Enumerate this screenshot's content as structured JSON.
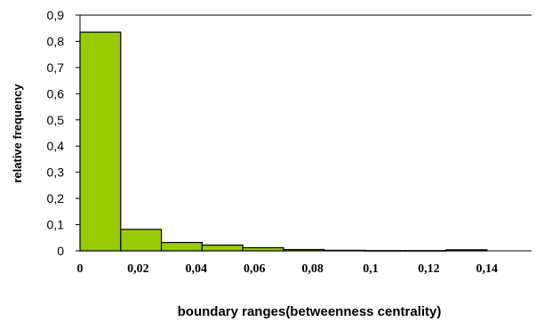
{
  "chart_data": {
    "type": "bar",
    "title": "",
    "xlabel": "boundary ranges(betweenness centrality)",
    "ylabel": "relative frequency",
    "ylim": [
      0,
      0.9
    ],
    "yticks": [
      "0",
      "0,1",
      "0,2",
      "0,3",
      "0,4",
      "0,5",
      "0,6",
      "0,7",
      "0,8",
      "0,9"
    ],
    "xticks": [
      "0",
      "0,02",
      "0,04",
      "0,06",
      "0,08",
      "0,1",
      "0,12",
      "0,14"
    ],
    "bin_width": 0.014,
    "bins": [
      {
        "start": 0.0,
        "value": 0.835
      },
      {
        "start": 0.014,
        "value": 0.082
      },
      {
        "start": 0.028,
        "value": 0.032
      },
      {
        "start": 0.042,
        "value": 0.022
      },
      {
        "start": 0.056,
        "value": 0.012
      },
      {
        "start": 0.07,
        "value": 0.005
      },
      {
        "start": 0.084,
        "value": 0.002
      },
      {
        "start": 0.098,
        "value": 0.001
      },
      {
        "start": 0.112,
        "value": 0.001
      },
      {
        "start": 0.126,
        "value": 0.004
      }
    ],
    "bar_color": "#99cc00",
    "bar_edge_color": "#000000",
    "grid": false,
    "legend": "none"
  }
}
